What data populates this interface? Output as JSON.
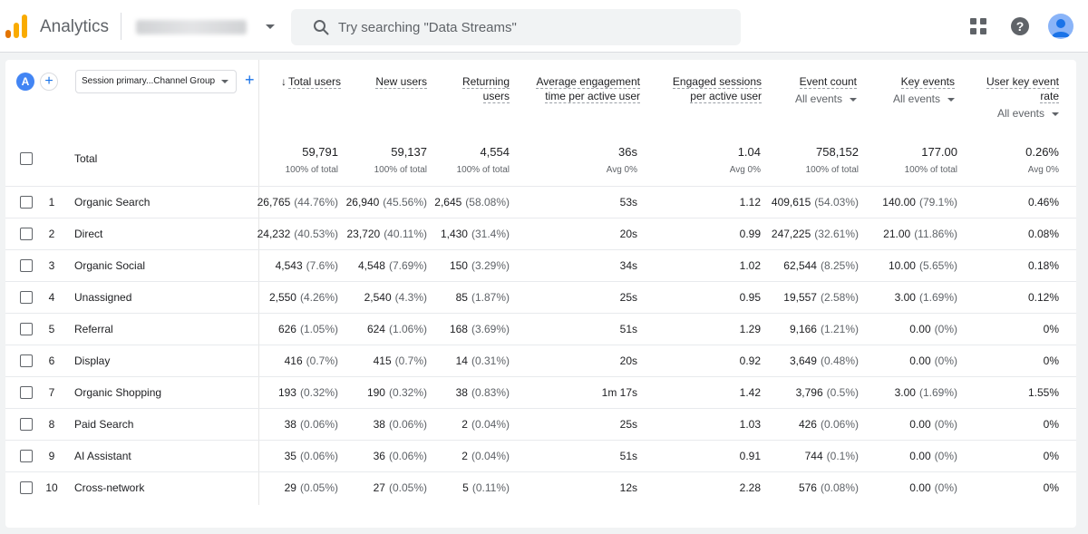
{
  "app": {
    "title": "Analytics",
    "account": "Demo Account"
  },
  "search": {
    "placeholder": "Try searching \"Data Streams\""
  },
  "colors": {
    "accent": "#1a73e8",
    "segment": "#4285f4",
    "logo_orange": "#f9ab00",
    "logo_dark": "#e37400"
  },
  "segment": {
    "letter": "A"
  },
  "dimension": {
    "label": "Session primary...Channel Group"
  },
  "columns": [
    {
      "label": "Total users",
      "sorted": true
    },
    {
      "label": "New users"
    },
    {
      "label": "Returning users",
      "lines": [
        "Returning",
        "users"
      ]
    },
    {
      "label": "Average engagement time per active user",
      "lines": [
        "Average engagement",
        "time per active user"
      ]
    },
    {
      "label": "Engaged sessions per active user",
      "lines": [
        "Engaged sessions",
        "per active user"
      ]
    },
    {
      "label": "Event count",
      "sub": "All events"
    },
    {
      "label": "Key events",
      "sub": "All events"
    },
    {
      "label": "User key event rate",
      "lines": [
        "User key event",
        "rate"
      ],
      "sub": "All events"
    }
  ],
  "total": {
    "label": "Total",
    "values": [
      "59,791",
      "59,137",
      "4,554",
      "36s",
      "1.04",
      "758,152",
      "177.00",
      "0.26%"
    ],
    "subs": [
      "100% of total",
      "100% of total",
      "100% of total",
      "Avg 0%",
      "Avg 0%",
      "100% of total",
      "100% of total",
      "Avg 0%"
    ]
  },
  "rows": [
    {
      "num": "1",
      "name": "Organic Search",
      "cells": [
        [
          "26,765",
          "(44.76%)"
        ],
        [
          "26,940",
          "(45.56%)"
        ],
        [
          "2,645",
          "(58.08%)"
        ],
        [
          "53s",
          ""
        ],
        [
          "1.12",
          ""
        ],
        [
          "409,615",
          "(54.03%)"
        ],
        [
          "140.00",
          "(79.1%)"
        ],
        [
          "0.46%",
          ""
        ]
      ]
    },
    {
      "num": "2",
      "name": "Direct",
      "cells": [
        [
          "24,232",
          "(40.53%)"
        ],
        [
          "23,720",
          "(40.11%)"
        ],
        [
          "1,430",
          "(31.4%)"
        ],
        [
          "20s",
          ""
        ],
        [
          "0.99",
          ""
        ],
        [
          "247,225",
          "(32.61%)"
        ],
        [
          "21.00",
          "(11.86%)"
        ],
        [
          "0.08%",
          ""
        ]
      ]
    },
    {
      "num": "3",
      "name": "Organic Social",
      "cells": [
        [
          "4,543",
          "(7.6%)"
        ],
        [
          "4,548",
          "(7.69%)"
        ],
        [
          "150",
          "(3.29%)"
        ],
        [
          "34s",
          ""
        ],
        [
          "1.02",
          ""
        ],
        [
          "62,544",
          "(8.25%)"
        ],
        [
          "10.00",
          "(5.65%)"
        ],
        [
          "0.18%",
          ""
        ]
      ]
    },
    {
      "num": "4",
      "name": "Unassigned",
      "cells": [
        [
          "2,550",
          "(4.26%)"
        ],
        [
          "2,540",
          "(4.3%)"
        ],
        [
          "85",
          "(1.87%)"
        ],
        [
          "25s",
          ""
        ],
        [
          "0.95",
          ""
        ],
        [
          "19,557",
          "(2.58%)"
        ],
        [
          "3.00",
          "(1.69%)"
        ],
        [
          "0.12%",
          ""
        ]
      ]
    },
    {
      "num": "5",
      "name": "Referral",
      "cells": [
        [
          "626",
          "(1.05%)"
        ],
        [
          "624",
          "(1.06%)"
        ],
        [
          "168",
          "(3.69%)"
        ],
        [
          "51s",
          ""
        ],
        [
          "1.29",
          ""
        ],
        [
          "9,166",
          "(1.21%)"
        ],
        [
          "0.00",
          "(0%)"
        ],
        [
          "0%",
          ""
        ]
      ]
    },
    {
      "num": "6",
      "name": "Display",
      "cells": [
        [
          "416",
          "(0.7%)"
        ],
        [
          "415",
          "(0.7%)"
        ],
        [
          "14",
          "(0.31%)"
        ],
        [
          "20s",
          ""
        ],
        [
          "0.92",
          ""
        ],
        [
          "3,649",
          "(0.48%)"
        ],
        [
          "0.00",
          "(0%)"
        ],
        [
          "0%",
          ""
        ]
      ]
    },
    {
      "num": "7",
      "name": "Organic Shopping",
      "cells": [
        [
          "193",
          "(0.32%)"
        ],
        [
          "190",
          "(0.32%)"
        ],
        [
          "38",
          "(0.83%)"
        ],
        [
          "1m 17s",
          ""
        ],
        [
          "1.42",
          ""
        ],
        [
          "3,796",
          "(0.5%)"
        ],
        [
          "3.00",
          "(1.69%)"
        ],
        [
          "1.55%",
          ""
        ]
      ]
    },
    {
      "num": "8",
      "name": "Paid Search",
      "cells": [
        [
          "38",
          "(0.06%)"
        ],
        [
          "38",
          "(0.06%)"
        ],
        [
          "2",
          "(0.04%)"
        ],
        [
          "25s",
          ""
        ],
        [
          "1.03",
          ""
        ],
        [
          "426",
          "(0.06%)"
        ],
        [
          "0.00",
          "(0%)"
        ],
        [
          "0%",
          ""
        ]
      ]
    },
    {
      "num": "9",
      "name": "AI Assistant",
      "cells": [
        [
          "35",
          "(0.06%)"
        ],
        [
          "36",
          "(0.06%)"
        ],
        [
          "2",
          "(0.04%)"
        ],
        [
          "51s",
          ""
        ],
        [
          "0.91",
          ""
        ],
        [
          "744",
          "(0.1%)"
        ],
        [
          "0.00",
          "(0%)"
        ],
        [
          "0%",
          ""
        ]
      ]
    },
    {
      "num": "10",
      "name": "Cross-network",
      "cells": [
        [
          "29",
          "(0.05%)"
        ],
        [
          "27",
          "(0.05%)"
        ],
        [
          "5",
          "(0.11%)"
        ],
        [
          "12s",
          ""
        ],
        [
          "2.28",
          ""
        ],
        [
          "576",
          "(0.08%)"
        ],
        [
          "0.00",
          "(0%)"
        ],
        [
          "0%",
          ""
        ]
      ]
    }
  ]
}
